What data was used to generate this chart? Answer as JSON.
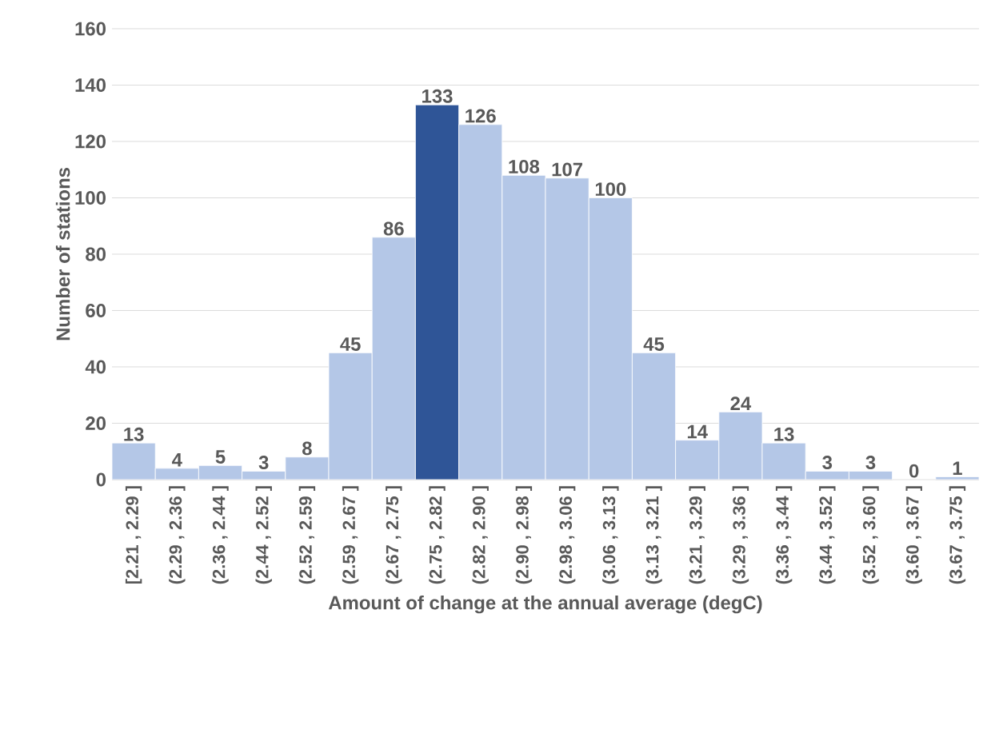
{
  "chart_data": {
    "type": "bar",
    "xlabel": "Amount of change at the annual average (degC)",
    "ylabel": "Number of stations",
    "categories": [
      "[2.21 , 2.29 ]",
      "(2.29 , 2.36 ]",
      "(2.36 , 2.44 ]",
      "(2.44 , 2.52 ]",
      "(2.52 , 2.59 ]",
      "(2.59 , 2.67 ]",
      "(2.67 , 2.75 ]",
      "(2.75 , 2.82 ]",
      "(2.82 , 2.90 ]",
      "(2.90 , 2.98 ]",
      "(2.98 , 3.06 ]",
      "(3.06 , 3.13 ]",
      "(3.13 , 3.21 ]",
      "(3.21 , 3.29 ]",
      "(3.29 , 3.36 ]",
      "(3.36 , 3.44 ]",
      "(3.44 , 3.52 ]",
      "(3.52 , 3.60 ]",
      "(3.60 , 3.67 ]",
      "(3.67 , 3.75 ]"
    ],
    "values": [
      13,
      4,
      5,
      3,
      8,
      45,
      86,
      133,
      126,
      108,
      107,
      100,
      45,
      14,
      24,
      13,
      3,
      3,
      0,
      1
    ],
    "colors": [
      "#b4c7e7",
      "#b4c7e7",
      "#b4c7e7",
      "#b4c7e7",
      "#b4c7e7",
      "#b4c7e7",
      "#b4c7e7",
      "#2f5597",
      "#b4c7e7",
      "#b4c7e7",
      "#b4c7e7",
      "#b4c7e7",
      "#b4c7e7",
      "#b4c7e7",
      "#b4c7e7",
      "#b4c7e7",
      "#b4c7e7",
      "#b4c7e7",
      "#b4c7e7",
      "#b4c7e7"
    ],
    "ylim": [
      0,
      160
    ],
    "yticks": [
      0,
      20,
      40,
      60,
      80,
      100,
      120,
      140,
      160
    ],
    "grid": "y",
    "data_labels": true
  }
}
